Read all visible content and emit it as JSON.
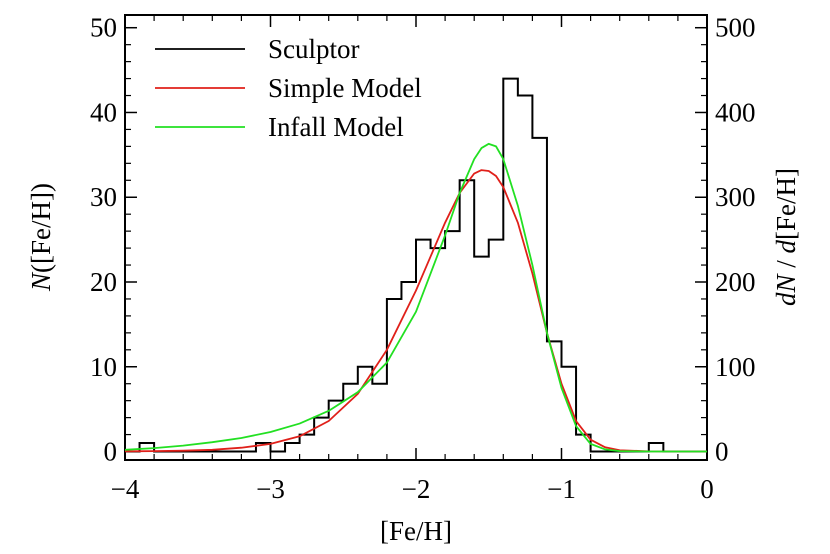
{
  "chart_data": {
    "type": "line",
    "xlabel": "[Fe/H]",
    "ylabel_left": "N([Fe/H])",
    "ylabel_right": "dN / d[Fe/H]",
    "xlim": [
      -4,
      0
    ],
    "ylim_left": [
      -1,
      51.5
    ],
    "ylim_right": [
      -10,
      515
    ],
    "x_ticks": [
      -4,
      -3,
      -2,
      -1,
      0
    ],
    "x_tick_labels": [
      "−4",
      "−3",
      "−2",
      "−1",
      "0"
    ],
    "y_left_ticks": [
      0,
      10,
      20,
      30,
      40,
      50
    ],
    "y_left_tick_labels": [
      "0",
      "10",
      "20",
      "30",
      "40",
      "50"
    ],
    "y_right_ticks": [
      0,
      100,
      200,
      300,
      400,
      500
    ],
    "y_right_tick_labels": [
      "0",
      "100",
      "200",
      "300",
      "400",
      "500"
    ],
    "grid": false,
    "legend_position": "top-left",
    "series": [
      {
        "name": "Sculptor",
        "kind": "histogram",
        "color": "#000000",
        "bin_edges": [
          -4.0,
          -3.9,
          -3.8,
          -3.7,
          -3.6,
          -3.5,
          -3.4,
          -3.3,
          -3.2,
          -3.1,
          -3.0,
          -2.9,
          -2.8,
          -2.7,
          -2.6,
          -2.5,
          -2.4,
          -2.3,
          -2.2,
          -2.1,
          -2.0,
          -1.9,
          -1.8,
          -1.7,
          -1.6,
          -1.5,
          -1.4,
          -1.3,
          -1.2,
          -1.1,
          -1.0,
          -0.9,
          -0.8,
          -0.7,
          -0.6,
          -0.5,
          -0.4,
          -0.3,
          -0.2,
          -0.1,
          0.0
        ],
        "counts": [
          0,
          1,
          0,
          0,
          0,
          0,
          0,
          0,
          0,
          1,
          0,
          1,
          2,
          4,
          6,
          8,
          10,
          8,
          18,
          20,
          25,
          24,
          26,
          32,
          23,
          25,
          44,
          42,
          37,
          13,
          10,
          2,
          0,
          0,
          0,
          0,
          1,
          0,
          0,
          0
        ]
      },
      {
        "name": "Simple Model",
        "kind": "curve",
        "color": "#e0201a",
        "x": [
          -4.0,
          -3.8,
          -3.6,
          -3.4,
          -3.2,
          -3.0,
          -2.8,
          -2.6,
          -2.4,
          -2.2,
          -2.0,
          -1.9,
          -1.8,
          -1.7,
          -1.6,
          -1.55,
          -1.5,
          -1.45,
          -1.4,
          -1.3,
          -1.2,
          -1.1,
          -1.0,
          -0.9,
          -0.8,
          -0.7,
          -0.6,
          -0.4,
          -0.2,
          0.0
        ],
        "y": [
          0.02,
          0.05,
          0.1,
          0.2,
          0.45,
          0.9,
          1.8,
          3.6,
          6.8,
          12,
          19,
          23,
          27,
          30.5,
          32.8,
          33.2,
          33.1,
          32.5,
          31.2,
          27,
          21,
          14,
          8,
          3.6,
          1.4,
          0.5,
          0.15,
          0.02,
          0,
          0
        ]
      },
      {
        "name": "Infall Model",
        "kind": "curve",
        "color": "#22e022",
        "x": [
          -4.0,
          -3.8,
          -3.6,
          -3.4,
          -3.2,
          -3.0,
          -2.8,
          -2.6,
          -2.4,
          -2.2,
          -2.0,
          -1.9,
          -1.8,
          -1.7,
          -1.6,
          -1.55,
          -1.5,
          -1.45,
          -1.4,
          -1.3,
          -1.2,
          -1.1,
          -1.0,
          -0.9,
          -0.8,
          -0.7,
          -0.6,
          -0.4,
          -0.2,
          0.0
        ],
        "y": [
          0.2,
          0.4,
          0.7,
          1.1,
          1.6,
          2.3,
          3.3,
          4.8,
          7,
          10.5,
          16.5,
          21,
          25.5,
          30.5,
          34.5,
          35.8,
          36.3,
          36,
          34.5,
          29,
          22,
          14,
          7.5,
          3,
          0.9,
          0.25,
          0.05,
          0,
          0,
          0
        ]
      }
    ]
  }
}
